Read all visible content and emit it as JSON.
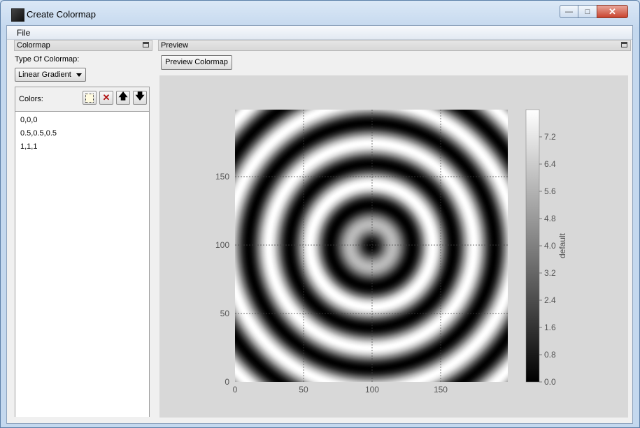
{
  "window": {
    "title": "Create Colormap",
    "icon": "app-icon",
    "min_glyph": "—",
    "max_glyph": "□",
    "close_glyph": "✕"
  },
  "menu": {
    "file": "File"
  },
  "colormap_panel": {
    "title": "Colormap",
    "type_label": "Type Of Colormap:",
    "type_value": "Linear Gradient",
    "colors_label": "Colors:",
    "colors": [
      "0,0,0",
      "0.5,0.5,0.5",
      "1,1,1"
    ],
    "toolbar_icons": [
      "add-color-icon",
      "delete-color-icon",
      "move-up-icon",
      "move-down-icon"
    ]
  },
  "preview_panel": {
    "title": "Preview",
    "button_label": "Preview Colormap"
  },
  "chart_data": {
    "type": "heatmap",
    "colormap": [
      "#000000",
      "#808080",
      "#ffffff"
    ],
    "field": "concentric rings centered at (100,100)",
    "x_ticks": [
      "0",
      "50",
      "100",
      "150"
    ],
    "y_ticks": [
      "0",
      "50",
      "100",
      "150"
    ],
    "xlim": [
      0,
      199
    ],
    "ylim": [
      0,
      199
    ],
    "grid": true,
    "colorbar": {
      "label": "default",
      "ticks": [
        "0.0",
        "0.8",
        "1.6",
        "2.4",
        "3.2",
        "4.0",
        "4.8",
        "5.6",
        "6.4",
        "7.2"
      ],
      "range": [
        0,
        8
      ]
    }
  }
}
